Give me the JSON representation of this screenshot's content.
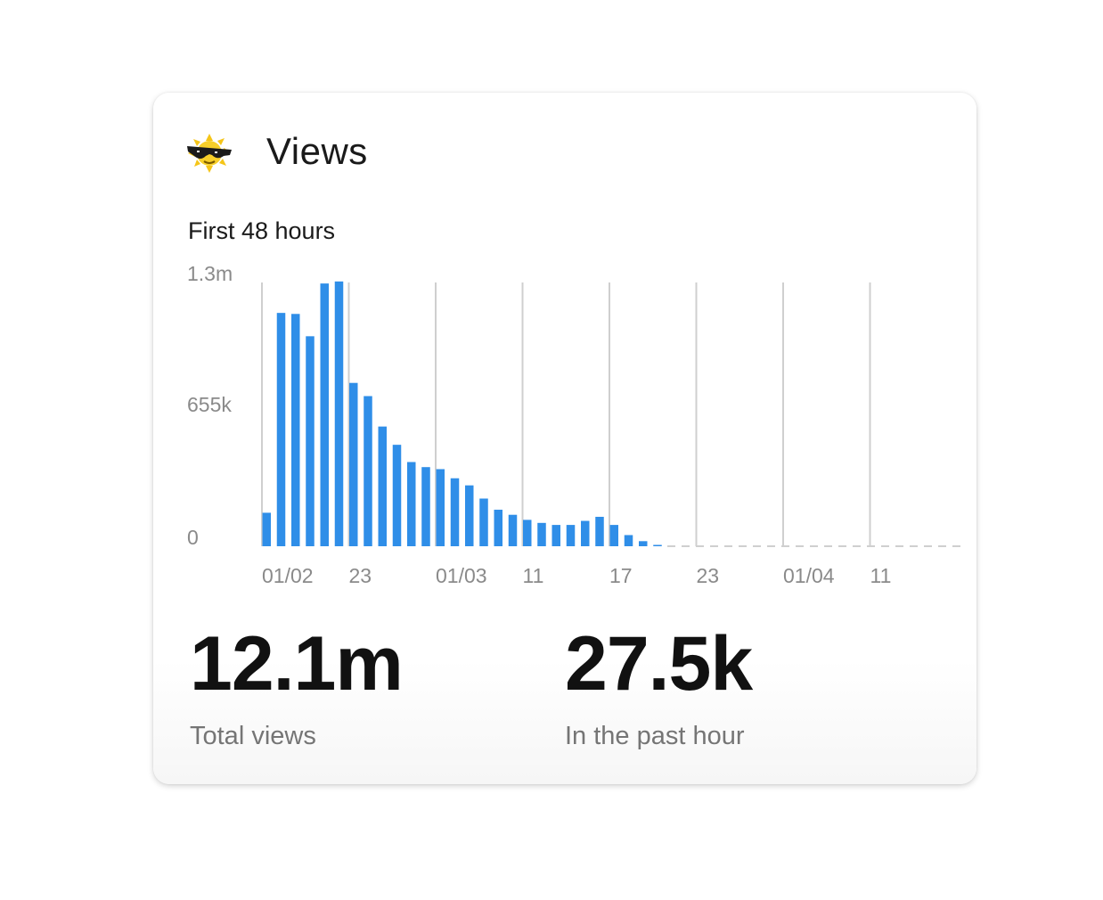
{
  "card": {
    "title": "Views",
    "icon": "sunglasses-sun-icon",
    "subtitle": "First 48 hours"
  },
  "stats": {
    "total_value": "12.1m",
    "total_label": "Total views",
    "hour_value": "27.5k",
    "hour_label": "In the past hour"
  },
  "colors": {
    "bar": "#2f8ee8",
    "grid": "#cfcfcf",
    "axis_text": "#8a8a8a"
  },
  "chart_data": {
    "type": "bar",
    "title": "First 48 hours",
    "ylim": [
      0,
      1300000
    ],
    "y_ticks": [
      {
        "value": 0,
        "label": "0"
      },
      {
        "value": 655000,
        "label": "655k"
      },
      {
        "value": 1300000,
        "label": "1.3m"
      }
    ],
    "x_ticks": [
      {
        "index": 0,
        "label": "01/02"
      },
      {
        "index": 6,
        "label": "23"
      },
      {
        "index": 12,
        "label": "01/03"
      },
      {
        "index": 18,
        "label": "11"
      },
      {
        "index": 24,
        "label": "17"
      },
      {
        "index": 30,
        "label": "23"
      },
      {
        "index": 36,
        "label": "01/04"
      },
      {
        "index": 42,
        "label": "11"
      }
    ],
    "hours_total": 48,
    "values": [
      165000,
      1150000,
      1145000,
      1035000,
      1295000,
      1305000,
      805000,
      740000,
      590000,
      500000,
      415000,
      390000,
      380000,
      335000,
      300000,
      235000,
      180000,
      155000,
      130000,
      115000,
      105000,
      105000,
      125000,
      145000,
      105000,
      55000,
      25000,
      5000
    ],
    "grid": true,
    "legend": "none"
  }
}
